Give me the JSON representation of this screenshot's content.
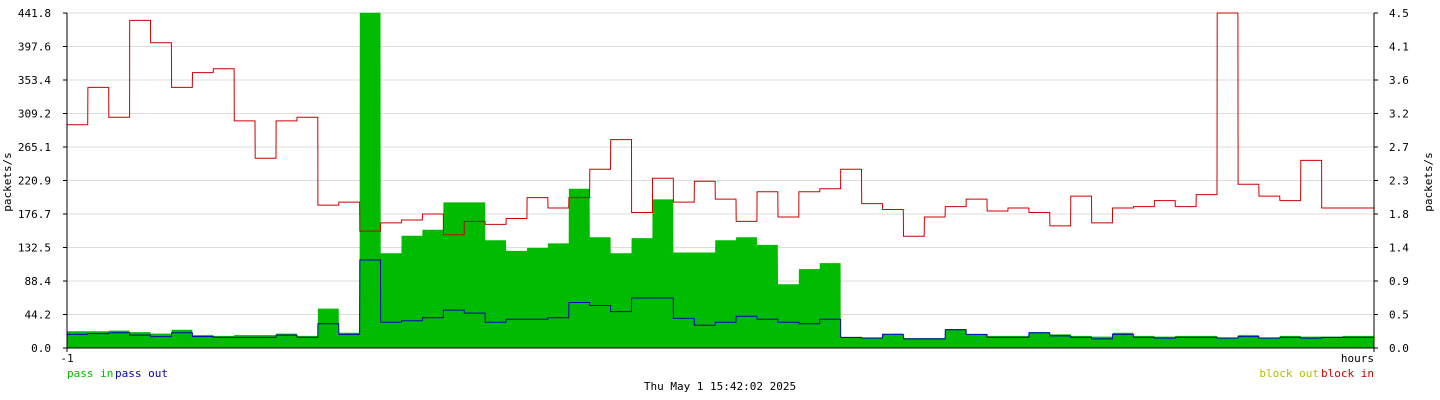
{
  "colors": {
    "pass_in": "#00bb00",
    "pass_out": "#0000bb",
    "block_out": "#bbbb00",
    "block_in": "#cc0000",
    "grid": "#dddddd",
    "axis": "#000000"
  },
  "chart_data": {
    "type": "area",
    "title": "",
    "ylabel_left": "packets/s",
    "ylabel_right": "packets/s",
    "x_start_label": "-1",
    "x_end_label": "hours",
    "timestamp": "Thu May  1 15:42:02 2025",
    "grid": true,
    "x_range": [
      -1,
      0
    ],
    "y_left_range": [
      0,
      441.8
    ],
    "y_left_ticks": [
      "0.0",
      "44.2",
      "88.4",
      "132.5",
      "176.7",
      "220.9",
      "265.1",
      "309.2",
      "353.4",
      "397.6",
      "441.8"
    ],
    "y_right_range": [
      0,
      4.5
    ],
    "y_right_ticks": [
      "0.0",
      "0.5",
      "0.9",
      "1.4",
      "1.8",
      "2.3",
      "2.7",
      "3.2",
      "3.6",
      "4.1",
      "4.5"
    ],
    "legend_left": [
      {
        "label": "pass in",
        "color_key": "pass_in"
      },
      {
        "label": "pass out",
        "color_key": "pass_out"
      }
    ],
    "legend_right": [
      {
        "label": "block out",
        "color_key": "block_out"
      },
      {
        "label": "block in",
        "color_key": "block_in"
      }
    ],
    "series": [
      {
        "name": "pass in",
        "axis": "left",
        "style": "area",
        "points": [
          [
            -1.0,
            22
          ],
          [
            -0.984,
            22
          ],
          [
            -0.968,
            23
          ],
          [
            -0.952,
            21
          ],
          [
            -0.936,
            19
          ],
          [
            -0.92,
            24
          ],
          [
            -0.904,
            17
          ],
          [
            -0.888,
            16
          ],
          [
            -0.872,
            17
          ],
          [
            -0.856,
            17
          ],
          [
            -0.84,
            19
          ],
          [
            -0.824,
            16
          ],
          [
            -0.808,
            52
          ],
          [
            -0.792,
            20
          ],
          [
            -0.776,
            442
          ],
          [
            -0.76,
            125
          ],
          [
            -0.744,
            148
          ],
          [
            -0.728,
            156
          ],
          [
            -0.712,
            192
          ],
          [
            -0.696,
            192
          ],
          [
            -0.68,
            142
          ],
          [
            -0.664,
            128
          ],
          [
            -0.648,
            132
          ],
          [
            -0.632,
            138
          ],
          [
            -0.616,
            210
          ],
          [
            -0.6,
            146
          ],
          [
            -0.584,
            125
          ],
          [
            -0.568,
            145
          ],
          [
            -0.552,
            196
          ],
          [
            -0.536,
            126
          ],
          [
            -0.52,
            126
          ],
          [
            -0.504,
            142
          ],
          [
            -0.488,
            146
          ],
          [
            -0.472,
            136
          ],
          [
            -0.456,
            84
          ],
          [
            -0.44,
            104
          ],
          [
            -0.424,
            112
          ],
          [
            -0.408,
            14
          ],
          [
            -0.392,
            14
          ],
          [
            -0.376,
            19
          ],
          [
            -0.36,
            13
          ],
          [
            -0.344,
            13
          ],
          [
            -0.328,
            25
          ],
          [
            -0.312,
            18
          ],
          [
            -0.296,
            16
          ],
          [
            -0.28,
            16
          ],
          [
            -0.264,
            21
          ],
          [
            -0.248,
            18
          ],
          [
            -0.232,
            16
          ],
          [
            -0.216,
            15
          ],
          [
            -0.2,
            20
          ],
          [
            -0.184,
            16
          ],
          [
            -0.168,
            15
          ],
          [
            -0.152,
            16
          ],
          [
            -0.136,
            16
          ],
          [
            -0.12,
            14
          ],
          [
            -0.104,
            17
          ],
          [
            -0.088,
            14
          ],
          [
            -0.072,
            16
          ],
          [
            -0.056,
            15
          ],
          [
            -0.04,
            15
          ],
          [
            -0.024,
            16
          ],
          [
            -0.008,
            16
          ]
        ]
      },
      {
        "name": "pass out",
        "axis": "left",
        "style": "line",
        "points": [
          [
            -1.0,
            18
          ],
          [
            -0.984,
            19
          ],
          [
            -0.968,
            20
          ],
          [
            -0.952,
            17
          ],
          [
            -0.936,
            15
          ],
          [
            -0.92,
            20
          ],
          [
            -0.904,
            15
          ],
          [
            -0.888,
            14
          ],
          [
            -0.872,
            14
          ],
          [
            -0.856,
            14
          ],
          [
            -0.84,
            17
          ],
          [
            -0.824,
            14
          ],
          [
            -0.808,
            32
          ],
          [
            -0.792,
            18
          ],
          [
            -0.776,
            116
          ],
          [
            -0.76,
            34
          ],
          [
            -0.744,
            36
          ],
          [
            -0.728,
            40
          ],
          [
            -0.712,
            50
          ],
          [
            -0.696,
            46
          ],
          [
            -0.68,
            34
          ],
          [
            -0.664,
            38
          ],
          [
            -0.648,
            38
          ],
          [
            -0.632,
            40
          ],
          [
            -0.616,
            60
          ],
          [
            -0.6,
            56
          ],
          [
            -0.584,
            48
          ],
          [
            -0.568,
            66
          ],
          [
            -0.552,
            66
          ],
          [
            -0.536,
            39
          ],
          [
            -0.52,
            30
          ],
          [
            -0.504,
            34
          ],
          [
            -0.488,
            42
          ],
          [
            -0.472,
            38
          ],
          [
            -0.456,
            34
          ],
          [
            -0.44,
            32
          ],
          [
            -0.424,
            38
          ],
          [
            -0.408,
            14
          ],
          [
            -0.392,
            13
          ],
          [
            -0.376,
            18
          ],
          [
            -0.36,
            12
          ],
          [
            -0.344,
            12
          ],
          [
            -0.328,
            24
          ],
          [
            -0.312,
            18
          ],
          [
            -0.296,
            14
          ],
          [
            -0.28,
            14
          ],
          [
            -0.264,
            20
          ],
          [
            -0.248,
            16
          ],
          [
            -0.232,
            14
          ],
          [
            -0.216,
            12
          ],
          [
            -0.2,
            18
          ],
          [
            -0.184,
            14
          ],
          [
            -0.168,
            13
          ],
          [
            -0.152,
            14
          ],
          [
            -0.136,
            14
          ],
          [
            -0.12,
            13
          ],
          [
            -0.104,
            15
          ],
          [
            -0.088,
            13
          ],
          [
            -0.072,
            14
          ],
          [
            -0.056,
            13
          ],
          [
            -0.04,
            14
          ],
          [
            -0.024,
            14
          ],
          [
            -0.008,
            14
          ]
        ]
      },
      {
        "name": "block out",
        "axis": "right",
        "style": "line",
        "points": [
          [
            -1.0,
            0.0
          ],
          [
            -0.008,
            0.0
          ]
        ]
      },
      {
        "name": "block in",
        "axis": "right",
        "style": "line",
        "points": [
          [
            -1.0,
            3.0
          ],
          [
            -0.984,
            3.5
          ],
          [
            -0.968,
            3.1
          ],
          [
            -0.952,
            4.4
          ],
          [
            -0.936,
            4.1
          ],
          [
            -0.92,
            3.5
          ],
          [
            -0.904,
            3.7
          ],
          [
            -0.888,
            3.75
          ],
          [
            -0.872,
            3.05
          ],
          [
            -0.856,
            2.55
          ],
          [
            -0.84,
            3.05
          ],
          [
            -0.824,
            3.1
          ],
          [
            -0.808,
            1.92
          ],
          [
            -0.792,
            1.96
          ],
          [
            -0.776,
            1.57
          ],
          [
            -0.76,
            1.68
          ],
          [
            -0.744,
            1.72
          ],
          [
            -0.728,
            1.8
          ],
          [
            -0.712,
            1.52
          ],
          [
            -0.696,
            1.7
          ],
          [
            -0.68,
            1.66
          ],
          [
            -0.664,
            1.74
          ],
          [
            -0.648,
            2.02
          ],
          [
            -0.632,
            1.88
          ],
          [
            -0.616,
            2.02
          ],
          [
            -0.6,
            2.4
          ],
          [
            -0.584,
            2.8
          ],
          [
            -0.568,
            1.82
          ],
          [
            -0.552,
            2.28
          ],
          [
            -0.536,
            1.96
          ],
          [
            -0.52,
            2.24
          ],
          [
            -0.504,
            2.0
          ],
          [
            -0.488,
            1.7
          ],
          [
            -0.472,
            2.1
          ],
          [
            -0.456,
            1.76
          ],
          [
            -0.44,
            2.1
          ],
          [
            -0.424,
            2.14
          ],
          [
            -0.408,
            2.4
          ],
          [
            -0.392,
            1.94
          ],
          [
            -0.376,
            1.86
          ],
          [
            -0.36,
            1.5
          ],
          [
            -0.344,
            1.76
          ],
          [
            -0.328,
            1.9
          ],
          [
            -0.312,
            2.0
          ],
          [
            -0.296,
            1.84
          ],
          [
            -0.28,
            1.88
          ],
          [
            -0.264,
            1.82
          ],
          [
            -0.248,
            1.64
          ],
          [
            -0.232,
            2.04
          ],
          [
            -0.216,
            1.68
          ],
          [
            -0.2,
            1.88
          ],
          [
            -0.184,
            1.9
          ],
          [
            -0.168,
            1.98
          ],
          [
            -0.152,
            1.9
          ],
          [
            -0.136,
            2.06
          ],
          [
            -0.12,
            4.5
          ],
          [
            -0.104,
            2.2
          ],
          [
            -0.088,
            2.04
          ],
          [
            -0.072,
            1.98
          ],
          [
            -0.056,
            2.52
          ],
          [
            -0.04,
            1.88
          ],
          [
            -0.024,
            1.88
          ],
          [
            -0.008,
            1.88
          ]
        ]
      }
    ]
  }
}
